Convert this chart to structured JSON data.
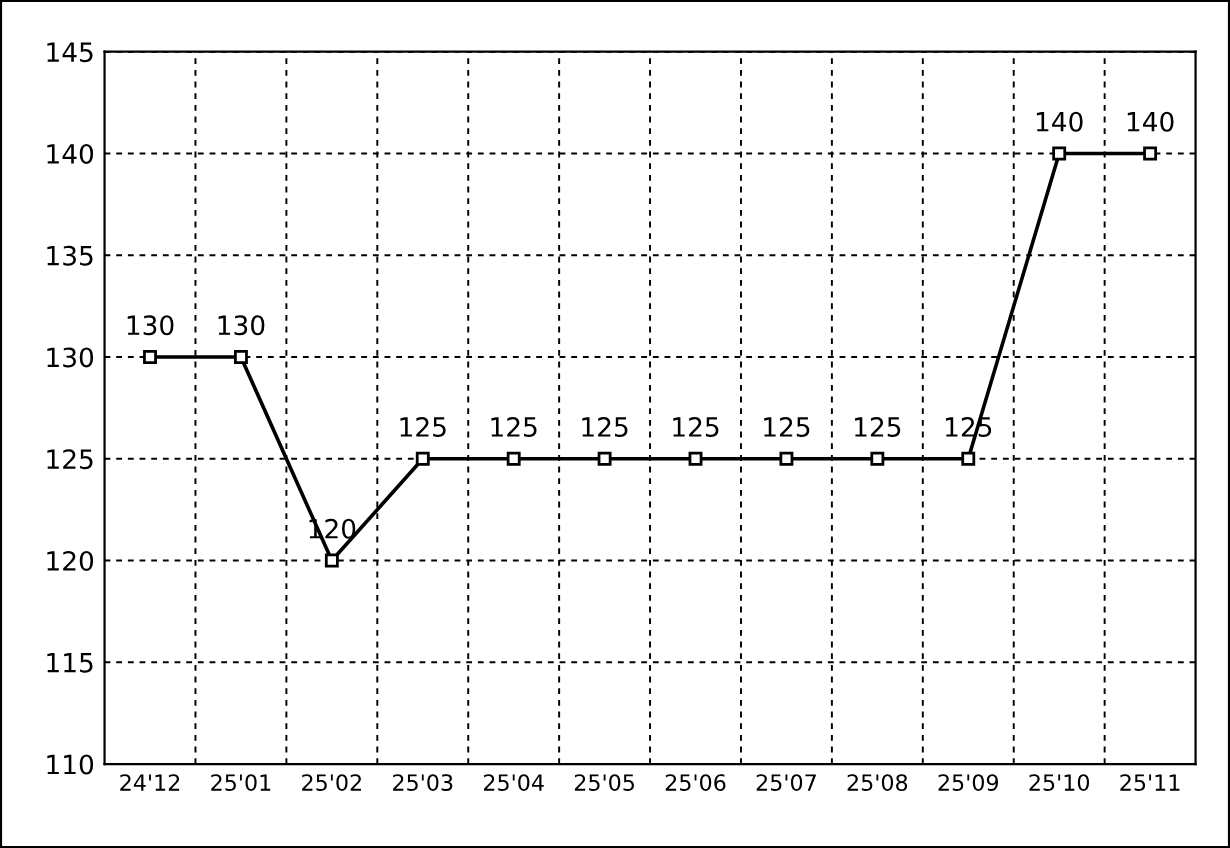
{
  "chart_data": {
    "type": "line",
    "categories": [
      "24'12",
      "25'01",
      "25'02",
      "25'03",
      "25'04",
      "25'05",
      "25'06",
      "25'07",
      "25'08",
      "25'09",
      "25'10",
      "25'11"
    ],
    "series": [
      {
        "color": "#000000",
        "values": [
          130,
          130,
          120,
          125,
          125,
          125,
          125,
          125,
          125,
          125,
          140,
          140
        ]
      }
    ],
    "ylim": [
      110,
      145
    ],
    "yticks": [
      110,
      115,
      120,
      125,
      130,
      135,
      140,
      145
    ],
    "grid": true,
    "marker": "square",
    "line_style": "solid",
    "data_labels": true
  }
}
